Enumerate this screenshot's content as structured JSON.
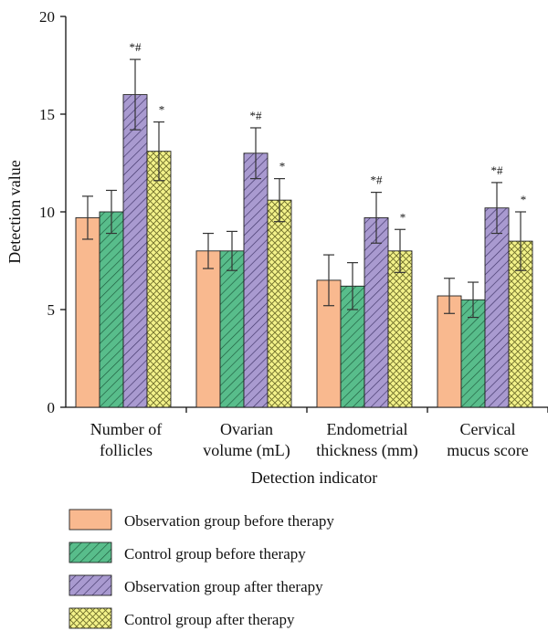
{
  "chart_data": {
    "type": "bar",
    "title": "",
    "xlabel": "Detection indicator",
    "ylabel": "Detection value",
    "ylim": [
      0,
      20
    ],
    "yticks": [
      0,
      5,
      10,
      15,
      20
    ],
    "grid": false,
    "legend_position": "bottom",
    "categories": [
      [
        "Number of",
        "follicles"
      ],
      [
        "Ovarian",
        "volume (mL)"
      ],
      [
        "Endometrial",
        "thickness (mm)"
      ],
      [
        "Cervical",
        "mucus score"
      ]
    ],
    "series": [
      {
        "name": "Observation group before therapy",
        "color": "#f9b98f",
        "pattern": "solid",
        "values": [
          9.7,
          8.0,
          6.5,
          5.7
        ],
        "errors": [
          1.1,
          0.9,
          1.3,
          0.9
        ],
        "annotations": [
          "",
          "",
          "",
          ""
        ]
      },
      {
        "name": "Control group before therapy",
        "color": "#58bd8b",
        "pattern": "diagonal",
        "values": [
          10.0,
          8.0,
          6.2,
          5.5
        ],
        "errors": [
          1.1,
          1.0,
          1.2,
          0.9
        ],
        "annotations": [
          "",
          "",
          "",
          ""
        ]
      },
      {
        "name": "Observation group after therapy",
        "color": "#a99ad0",
        "pattern": "diagonal",
        "values": [
          16.0,
          13.0,
          9.7,
          10.2
        ],
        "errors": [
          1.8,
          1.3,
          1.3,
          1.3
        ],
        "annotations": [
          "*#",
          "*#",
          "*#",
          "*#"
        ]
      },
      {
        "name": "Control group after therapy",
        "color": "#f3f28a",
        "pattern": "crosshatch",
        "values": [
          13.1,
          10.6,
          8.0,
          8.5
        ],
        "errors": [
          1.5,
          1.1,
          1.1,
          1.5
        ],
        "annotations": [
          "*",
          "*",
          "*",
          "*"
        ]
      }
    ]
  }
}
